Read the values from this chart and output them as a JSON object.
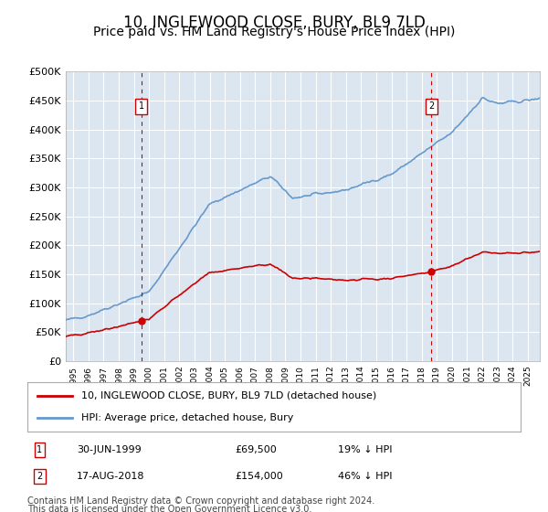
{
  "title": "10, INGLEWOOD CLOSE, BURY, BL9 7LD",
  "subtitle": "Price paid vs. HM Land Registry's House Price Index (HPI)",
  "background_color": "#ffffff",
  "plot_bg_color": "#dce6f1",
  "grid_color": "#ffffff",
  "sale1_year": 1999.5,
  "sale1_price": 69500,
  "sale1_label": "1",
  "sale2_year": 2018.625,
  "sale2_price": 154000,
  "sale2_label": "2",
  "red_line_color": "#cc0000",
  "blue_line_color": "#6699cc",
  "marker_box_color": "#cc0000",
  "legend_label_red": "10, INGLEWOOD CLOSE, BURY, BL9 7LD (detached house)",
  "legend_label_blue": "HPI: Average price, detached house, Bury",
  "footer_line1": "Contains HM Land Registry data © Crown copyright and database right 2024.",
  "footer_line2": "This data is licensed under the Open Government Licence v3.0.",
  "ylim": [
    0,
    500000
  ],
  "yticks": [
    0,
    50000,
    100000,
    150000,
    200000,
    250000,
    300000,
    350000,
    400000,
    450000,
    500000
  ],
  "ytick_labels": [
    "£0",
    "£50K",
    "£100K",
    "£150K",
    "£200K",
    "£250K",
    "£300K",
    "£350K",
    "£400K",
    "£450K",
    "£500K"
  ],
  "xlim": [
    1994.5,
    2025.8
  ],
  "title_fontsize": 12,
  "subtitle_fontsize": 10,
  "axis_fontsize": 8,
  "legend_fontsize": 8,
  "footer_fontsize": 7,
  "table_row1_date": "30-JUN-1999",
  "table_row1_price": "£69,500",
  "table_row1_hpi": "19% ↓ HPI",
  "table_row2_date": "17-AUG-2018",
  "table_row2_price": "£154,000",
  "table_row2_hpi": "46% ↓ HPI"
}
